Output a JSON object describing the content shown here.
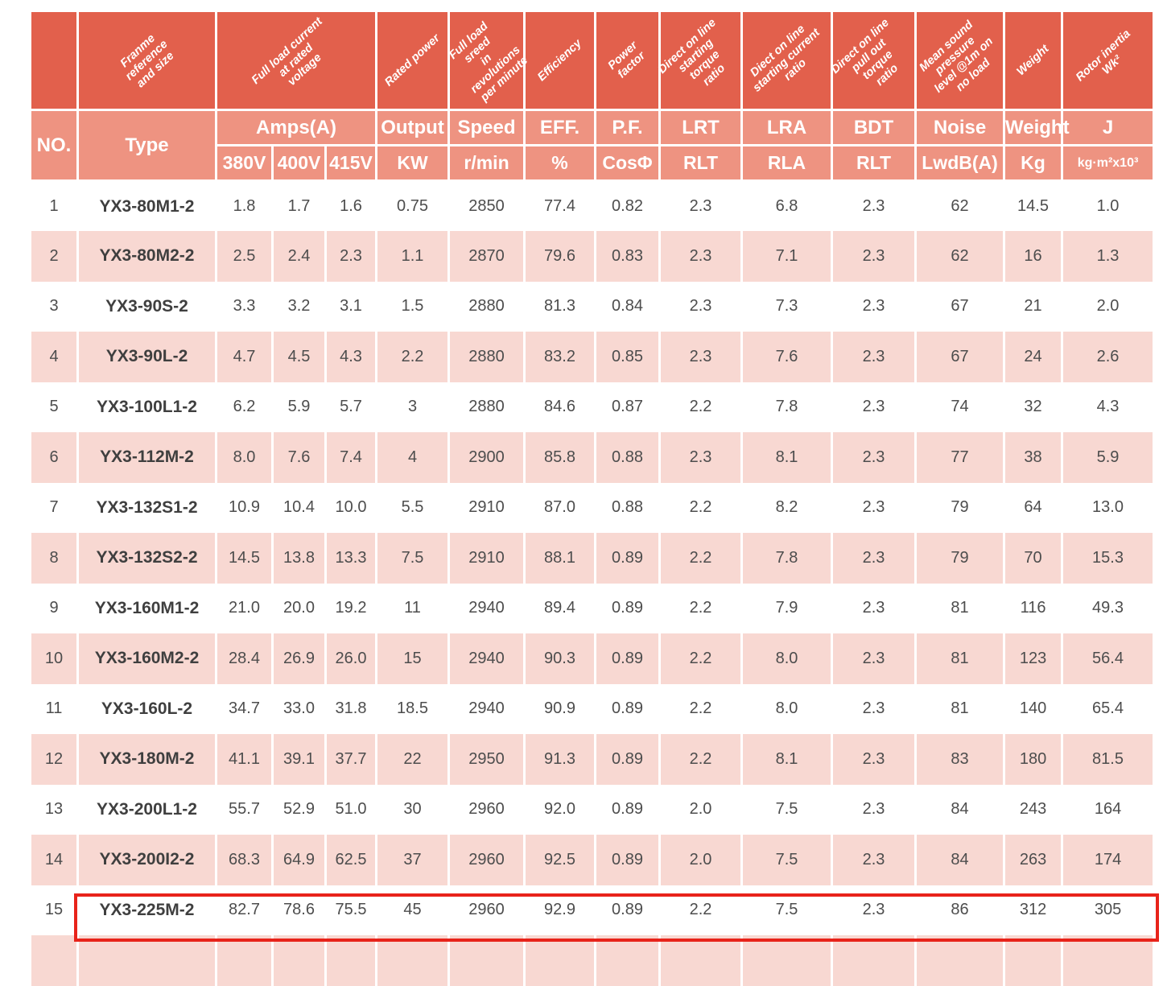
{
  "colors": {
    "header_dark": "#e2604c",
    "header_light": "#ee9381",
    "row_pink": "#f8d8d2",
    "row_white": "#ffffff",
    "data_text": "#4d4d4d",
    "highlight_border": "#e8231a"
  },
  "table": {
    "diagonal_headers": [
      {
        "label": ""
      },
      {
        "label": "Franme\nreference\nand size"
      },
      {
        "label": "Full load current\nat rated\nvoltage"
      },
      {
        "label": "Rated power"
      },
      {
        "label": "Full load sreed\nin revolutions\nper minute"
      },
      {
        "label": "Efficiency"
      },
      {
        "label": "Power factor"
      },
      {
        "label": "Direct on line\nstarting torque\nratio"
      },
      {
        "label": "Diect on line\nstarting current\nratio"
      },
      {
        "label": "Direct on line\npull out torque\nratio"
      },
      {
        "label": "Mean sound\npressure\nlevel @1m on\nno load"
      },
      {
        "label": "Weight"
      },
      {
        "label": "Rotor inertia\nWk²"
      }
    ],
    "band": {
      "no": "NO.",
      "type": "Type",
      "amps_group": "Amps(A)",
      "volt_cols": [
        "380V",
        "400V",
        "415V"
      ],
      "upper": [
        "Output",
        "Speed",
        "EFF.",
        "P.F.",
        "LRT",
        "LRA",
        "BDT",
        "Noise",
        "Weight",
        "J"
      ],
      "lower": [
        "KW",
        "r/min",
        "%",
        "CosΦ",
        "RLT",
        "RLA",
        "RLT",
        "LwdB(A)",
        "Kg",
        "kg·m²x10³"
      ]
    },
    "rows": [
      {
        "cells": [
          "1",
          "YX3-80M1-2",
          "1.8",
          "1.7",
          "1.6",
          "0.75",
          "2850",
          "77.4",
          "0.82",
          "2.3",
          "6.8",
          "2.3",
          "62",
          "14.5",
          "1.0"
        ]
      },
      {
        "cells": [
          "2",
          "YX3-80M2-2",
          "2.5",
          "2.4",
          "2.3",
          "1.1",
          "2870",
          "79.6",
          "0.83",
          "2.3",
          "7.1",
          "2.3",
          "62",
          "16",
          "1.3"
        ]
      },
      {
        "cells": [
          "3",
          "YX3-90S-2",
          "3.3",
          "3.2",
          "3.1",
          "1.5",
          "2880",
          "81.3",
          "0.84",
          "2.3",
          "7.3",
          "2.3",
          "67",
          "21",
          "2.0"
        ]
      },
      {
        "cells": [
          "4",
          "YX3-90L-2",
          "4.7",
          "4.5",
          "4.3",
          "2.2",
          "2880",
          "83.2",
          "0.85",
          "2.3",
          "7.6",
          "2.3",
          "67",
          "24",
          "2.6"
        ]
      },
      {
        "cells": [
          "5",
          "YX3-100L1-2",
          "6.2",
          "5.9",
          "5.7",
          "3",
          "2880",
          "84.6",
          "0.87",
          "2.2",
          "7.8",
          "2.3",
          "74",
          "32",
          "4.3"
        ]
      },
      {
        "cells": [
          "6",
          "YX3-112M-2",
          "8.0",
          "7.6",
          "7.4",
          "4",
          "2900",
          "85.8",
          "0.88",
          "2.3",
          "8.1",
          "2.3",
          "77",
          "38",
          "5.9"
        ]
      },
      {
        "cells": [
          "7",
          "YX3-132S1-2",
          "10.9",
          "10.4",
          "10.0",
          "5.5",
          "2910",
          "87.0",
          "0.88",
          "2.2",
          "8.2",
          "2.3",
          "79",
          "64",
          "13.0"
        ]
      },
      {
        "cells": [
          "8",
          "YX3-132S2-2",
          "14.5",
          "13.8",
          "13.3",
          "7.5",
          "2910",
          "88.1",
          "0.89",
          "2.2",
          "7.8",
          "2.3",
          "79",
          "70",
          "15.3"
        ]
      },
      {
        "cells": [
          "9",
          "YX3-160M1-2",
          "21.0",
          "20.0",
          "19.2",
          "11",
          "2940",
          "89.4",
          "0.89",
          "2.2",
          "7.9",
          "2.3",
          "81",
          "116",
          "49.3"
        ]
      },
      {
        "cells": [
          "10",
          "YX3-160M2-2",
          "28.4",
          "26.9",
          "26.0",
          "15",
          "2940",
          "90.3",
          "0.89",
          "2.2",
          "8.0",
          "2.3",
          "81",
          "123",
          "56.4"
        ]
      },
      {
        "cells": [
          "11",
          "YX3-160L-2",
          "34.7",
          "33.0",
          "31.8",
          "18.5",
          "2940",
          "90.9",
          "0.89",
          "2.2",
          "8.0",
          "2.3",
          "81",
          "140",
          "65.4"
        ]
      },
      {
        "cells": [
          "12",
          "YX3-180M-2",
          "41.1",
          "39.1",
          "37.7",
          "22",
          "2950",
          "91.3",
          "0.89",
          "2.2",
          "8.1",
          "2.3",
          "83",
          "180",
          "81.5"
        ]
      },
      {
        "cells": [
          "13",
          "YX3-200L1-2",
          "55.7",
          "52.9",
          "51.0",
          "30",
          "2960",
          "92.0",
          "0.89",
          "2.0",
          "7.5",
          "2.3",
          "84",
          "243",
          "164"
        ]
      },
      {
        "cells": [
          "14",
          "YX3-200I2-2",
          "68.3",
          "64.9",
          "62.5",
          "37",
          "2960",
          "92.5",
          "0.89",
          "2.0",
          "7.5",
          "2.3",
          "84",
          "263",
          "174"
        ]
      },
      {
        "cells": [
          "15",
          "YX3-225M-2",
          "82.7",
          "78.6",
          "75.5",
          "45",
          "2960",
          "92.9",
          "0.89",
          "2.2",
          "7.5",
          "2.3",
          "86",
          "312",
          "305"
        ]
      }
    ],
    "partial_next_row": true,
    "highlighted_row_no": "15"
  }
}
